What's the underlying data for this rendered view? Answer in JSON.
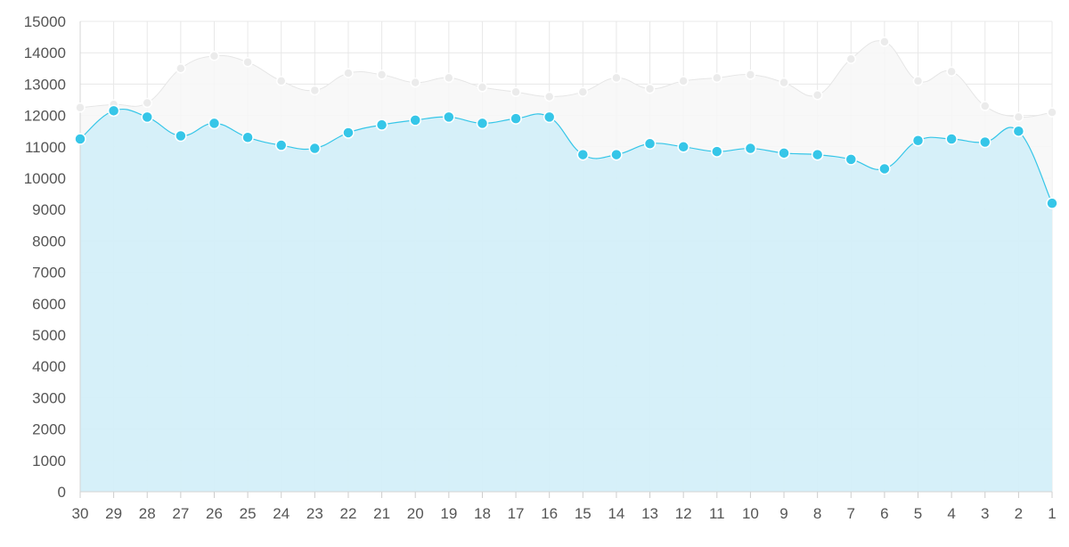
{
  "chart_data": {
    "type": "area",
    "x": [
      "30",
      "29",
      "28",
      "27",
      "26",
      "25",
      "24",
      "23",
      "22",
      "21",
      "20",
      "19",
      "18",
      "17",
      "16",
      "15",
      "14",
      "13",
      "12",
      "11",
      "10",
      "9",
      "8",
      "7",
      "6",
      "5",
      "4",
      "3",
      "2",
      "1"
    ],
    "ylim": [
      0,
      15000
    ],
    "yticks": [
      0,
      1000,
      2000,
      3000,
      4000,
      5000,
      6000,
      7000,
      8000,
      9000,
      10000,
      11000,
      12000,
      13000,
      14000,
      15000
    ],
    "grid": true,
    "series": [
      {
        "color": "#e6e6e6",
        "fill": "#f7f7f7",
        "values": [
          12250,
          12350,
          12400,
          13500,
          13900,
          13700,
          13100,
          12800,
          13350,
          13300,
          13050,
          13200,
          12900,
          12750,
          12600,
          12750,
          13200,
          12850,
          13100,
          13200,
          13300,
          13050,
          12650,
          13800,
          14350,
          13100,
          13400,
          12300,
          11950,
          12100
        ]
      },
      {
        "color": "#36c6e8",
        "fill": "#d2eef8",
        "values": [
          11250,
          12150,
          11950,
          11350,
          11750,
          11300,
          11050,
          10950,
          11450,
          11700,
          11850,
          11950,
          11750,
          11900,
          11950,
          10750,
          10750,
          11100,
          11000,
          10850,
          10950,
          10800,
          10750,
          10600,
          10300,
          11200,
          11250,
          11150,
          11500,
          9200
        ]
      }
    ]
  }
}
